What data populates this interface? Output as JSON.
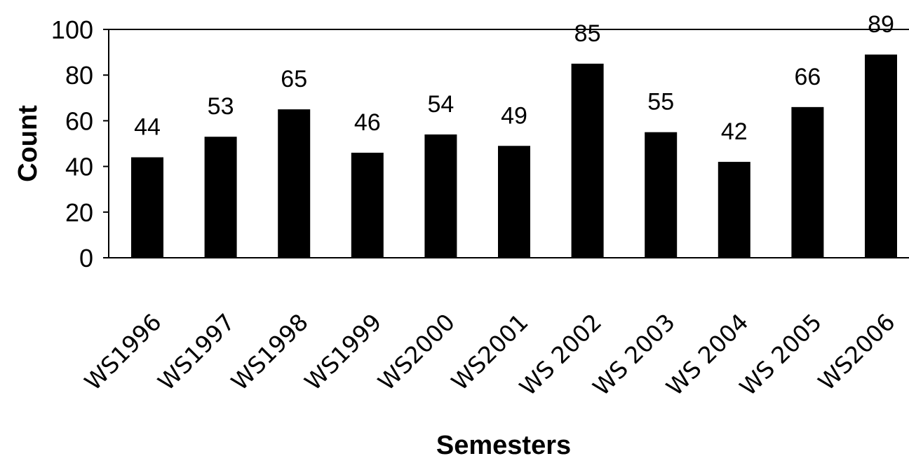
{
  "chart_data": {
    "type": "bar",
    "title": "",
    "xlabel": "Semesters",
    "ylabel": "Count",
    "categories": [
      "WS1996",
      "WS1997",
      "WS1998",
      "WS1999",
      "WS2000",
      "WS2001",
      "WS 2002",
      "WS 2003",
      "WS 2004",
      "WS 2005",
      "WS2006"
    ],
    "values": [
      44,
      53,
      65,
      46,
      54,
      49,
      85,
      55,
      42,
      66,
      89
    ],
    "data_labels": [
      "44",
      "53",
      "65",
      "46",
      "54",
      "49",
      "85",
      "55",
      "42",
      "66",
      "89"
    ],
    "ylim": [
      0,
      100
    ],
    "yticks": [
      "0",
      "20",
      "40",
      "60",
      "80",
      "100"
    ],
    "grid": false,
    "legend": "none",
    "bar_color": "#000000"
  }
}
